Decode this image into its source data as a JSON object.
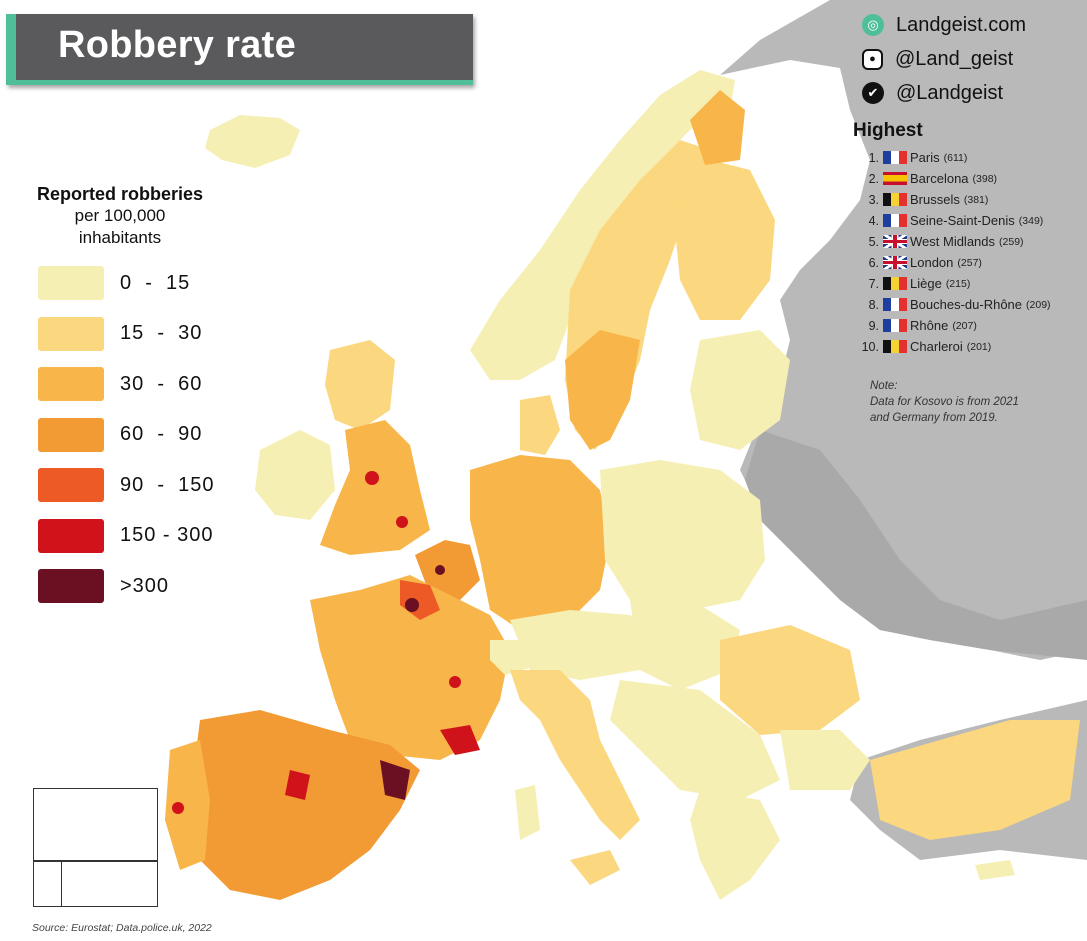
{
  "title": "Robbery rate",
  "social": [
    {
      "icon": "globe-icon",
      "text": "Landgeist.com"
    },
    {
      "icon": "instagram-icon",
      "text": "@Land_geist"
    },
    {
      "icon": "twitter-icon",
      "text": "@Landgeist"
    }
  ],
  "legend": {
    "title": "Reported robberies",
    "subtitle_line1": "per 100,000",
    "subtitle_line2": "inhabitants",
    "items": [
      {
        "label": "0  -  15",
        "color": "#f5efb4"
      },
      {
        "label": "15  -  30",
        "color": "#fbd77f"
      },
      {
        "label": "30  -  60",
        "color": "#f8b549"
      },
      {
        "label": "60  -  90",
        "color": "#f29a33"
      },
      {
        "label": "90  -  150",
        "color": "#ed5a26"
      },
      {
        "label": "150 - 300",
        "color": "#d0121b"
      },
      {
        "label": ">300",
        "color": "#6b0f22"
      }
    ]
  },
  "highest": {
    "title": "Highest",
    "items": [
      {
        "rank": "1.",
        "flag": "fr",
        "name": "Paris",
        "value": "(611)"
      },
      {
        "rank": "2.",
        "flag": "es",
        "name": "Barcelona",
        "value": "(398)"
      },
      {
        "rank": "3.",
        "flag": "be",
        "name": "Brussels",
        "value": "(381)"
      },
      {
        "rank": "4.",
        "flag": "fr",
        "name": "Seine-Saint-Denis",
        "value": "(349)"
      },
      {
        "rank": "5.",
        "flag": "uk",
        "name": "West Midlands",
        "value": "(259)"
      },
      {
        "rank": "6.",
        "flag": "uk",
        "name": "London",
        "value": "(257)"
      },
      {
        "rank": "7.",
        "flag": "be",
        "name": "Liège",
        "value": "(215)"
      },
      {
        "rank": "8.",
        "flag": "fr",
        "name": "Bouches-du-Rhône",
        "value": "(209)"
      },
      {
        "rank": "9.",
        "flag": "fr",
        "name": "Rhône",
        "value": "(207)"
      },
      {
        "rank": "10.",
        "flag": "be",
        "name": "Charleroi",
        "value": "(201)"
      }
    ]
  },
  "note": {
    "title": "Note:",
    "line1": "Data for Kosovo is from 2021",
    "line2": "and Germany from 2019."
  },
  "source": "Source: Eurostat; Data.police.uk, 2022",
  "colors": {
    "no_data": "#b9b9b9",
    "sea": "#ffffff",
    "border": "#ffffff"
  }
}
